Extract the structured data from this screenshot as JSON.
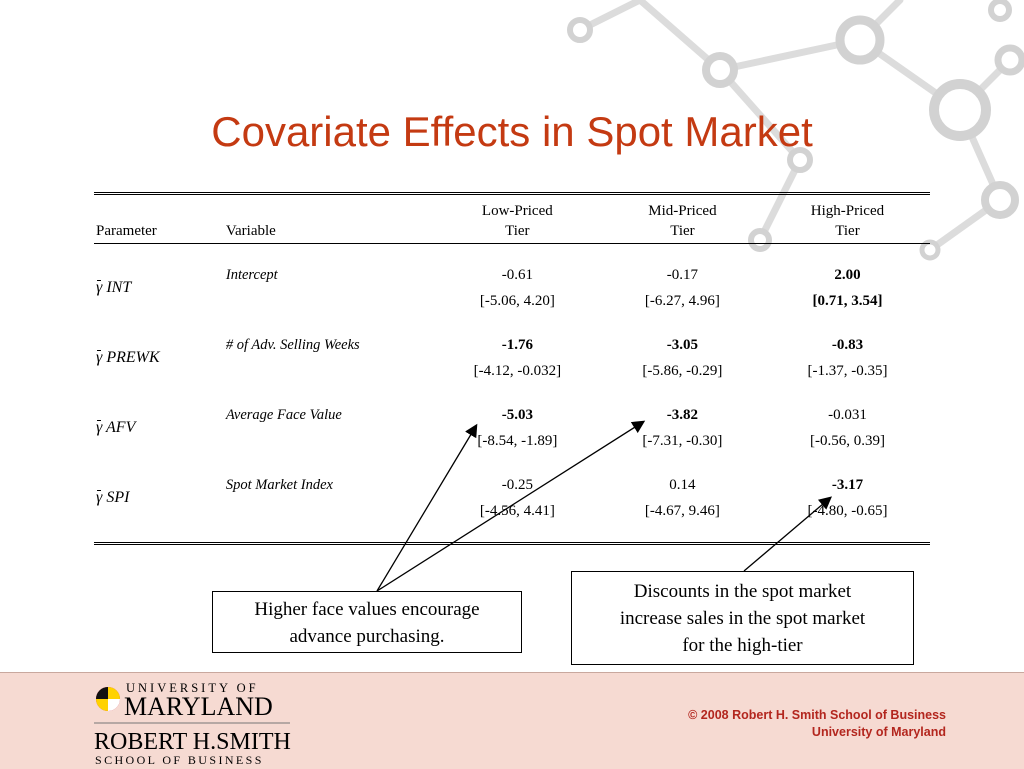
{
  "slide": {
    "title": "Covariate Effects in Spot Market"
  },
  "table": {
    "headers": {
      "parameter": "Parameter",
      "variable": "Variable",
      "tiers": [
        {
          "line1": "Low-Priced",
          "line2": "Tier"
        },
        {
          "line1": "Mid-Priced",
          "line2": "Tier"
        },
        {
          "line1": "High-Priced",
          "line2": "Tier"
        }
      ]
    },
    "rows": [
      {
        "symbol": "γ",
        "subscript": "INT",
        "variable": "Intercept",
        "estimates": [
          "-0.61",
          "-0.17",
          "2.00"
        ],
        "intervals": [
          "[-5.06, 4.20]",
          "[-6.27, 4.96]",
          "[0.71, 3.54]"
        ],
        "bold": [
          false,
          false,
          true
        ]
      },
      {
        "symbol": "γ",
        "subscript": "PREWK",
        "variable": "# of Adv. Selling Weeks",
        "estimates": [
          "-1.76",
          "-3.05",
          "-0.83"
        ],
        "intervals": [
          "[-4.12, -0.032]",
          "[-5.86, -0.29]",
          "[-1.37, -0.35]"
        ],
        "bold": [
          true,
          true,
          true
        ]
      },
      {
        "symbol": "γ",
        "subscript": "AFV",
        "variable": "Average Face Value",
        "estimates": [
          "-5.03",
          "-3.82",
          "-0.031"
        ],
        "intervals": [
          "[-8.54, -1.89]",
          "[-7.31, -0.30]",
          "[-0.56, 0.39]"
        ],
        "bold": [
          true,
          true,
          false
        ]
      },
      {
        "symbol": "γ",
        "subscript": "SPI",
        "variable": "Spot Market Index",
        "estimates": [
          "-0.25",
          "0.14",
          "-3.17"
        ],
        "intervals": [
          "[-4.56, 4.41]",
          "[-4.67, 9.46]",
          "[-4.80, -0.65]"
        ],
        "bold": [
          false,
          false,
          true
        ]
      }
    ]
  },
  "callouts": {
    "left": {
      "line1": "Higher face values encourage",
      "line2": "advance purchasing."
    },
    "right": {
      "line1": "Discounts in the spot market",
      "line2": "increase sales in the spot market",
      "line3": "for the high-tier"
    }
  },
  "footer": {
    "logo": {
      "university": "UNIVERSITY OF",
      "maryland": "MARYLAND",
      "robert": "ROBERT H.SMITH",
      "school": "SCHOOL OF BUSINESS"
    },
    "copyright_line1": "© 2008 Robert H. Smith School of Business",
    "copyright_line2": "University of Maryland"
  },
  "colors": {
    "title": "#C43A12",
    "footer_bg": "#F6DAD2",
    "copyright": "#B3261E",
    "decoration": "#D6D6D6"
  }
}
